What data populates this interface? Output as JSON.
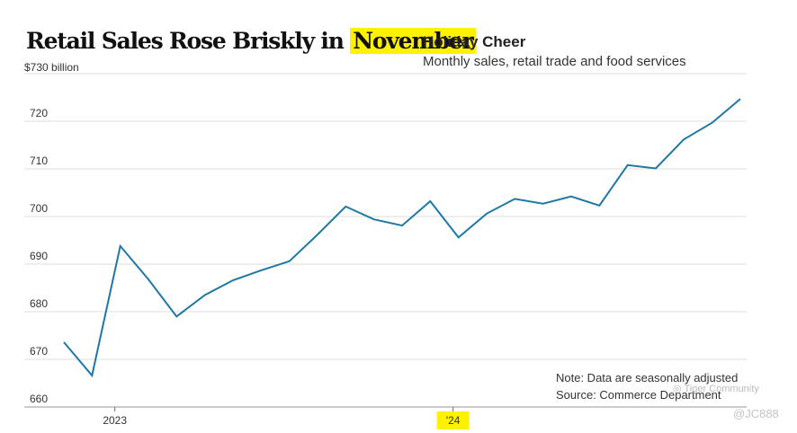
{
  "headline": {
    "prefix": "Retail Sales Rose Briskly in ",
    "highlight": "November"
  },
  "chart_data": {
    "type": "line",
    "title": "Holiday Cheer",
    "subtitle": "Monthly sales, retail trade and food services",
    "y_unit_label": "$730 billion",
    "y_ticks": [
      720,
      710,
      700,
      690,
      680,
      670,
      660
    ],
    "ylim": [
      660,
      730
    ],
    "x_tick_labels": [
      {
        "label": "2023",
        "index": 2,
        "highlighted": false
      },
      {
        "label": "'24",
        "index": 14,
        "highlighted": true
      }
    ],
    "grid": true,
    "series": [
      {
        "values": [
          673.6,
          666.6,
          693.8,
          686.8,
          679.0,
          683.5,
          686.6,
          688.7,
          690.6,
          696.2,
          702.1,
          699.4,
          698.1,
          703.2,
          695.6,
          700.6,
          703.7,
          702.7,
          704.2,
          702.3,
          710.8,
          710.1,
          716.2,
          719.7,
          724.7
        ],
        "color": "#1f77a5"
      }
    ]
  },
  "notes": {
    "note": "Note: Data are seasonally adjusted",
    "source": "Source: Commerce Department"
  },
  "watermarks": {
    "community": "Tiger Community",
    "handle": "@JC888"
  }
}
